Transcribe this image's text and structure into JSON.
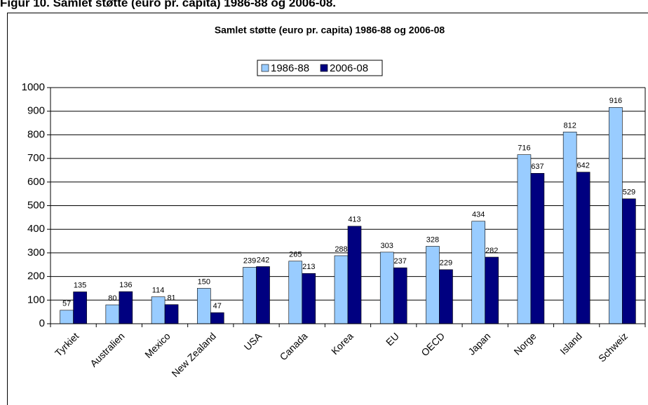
{
  "heading": "Figur 10. Samlet støtte (euro pr. capita) 1986-88 og 2006-08.",
  "chart_data": {
    "type": "bar",
    "title": "Samlet støtte (euro pr. capita) 1986-88 og 2006-08",
    "categories": [
      "Tyrkiet",
      "Australien",
      "Mexico",
      "New Zealand",
      "USA",
      "Canada",
      "Korea",
      "EU",
      "OECD",
      "Japan",
      "Norge",
      "Island",
      "Schweiz"
    ],
    "series": [
      {
        "name": "1986-88",
        "color": "#99ccff",
        "values": [
          57,
          80,
          114,
          150,
          239,
          265,
          288,
          303,
          328,
          434,
          716,
          812,
          916
        ]
      },
      {
        "name": "2006-08",
        "color": "#000080",
        "values": [
          135,
          136,
          81,
          47,
          242,
          213,
          413,
          237,
          229,
          282,
          637,
          642,
          529
        ]
      }
    ],
    "ylim": [
      0,
      1000
    ],
    "yticks": [
      0,
      100,
      200,
      300,
      400,
      500,
      600,
      700,
      800,
      900,
      1000
    ],
    "grid": true,
    "legend": "top"
  }
}
